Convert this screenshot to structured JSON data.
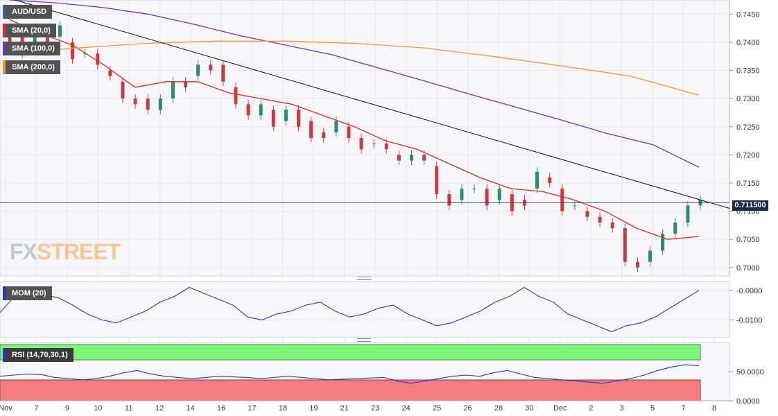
{
  "symbol": "AUD/USD",
  "indicators": {
    "sma20": {
      "label": "SMA (20,0)",
      "color": "#e8222a"
    },
    "sma100": {
      "label": "SMA (100,0)",
      "color": "#6a2ee6"
    },
    "sma200": {
      "label": "SMA (200,0)",
      "color": "#f39a1e"
    },
    "mom": {
      "label": "MOM (20)",
      "color": "#2236d8"
    },
    "rsi": {
      "label": "RSI (14,70,30,1)",
      "color": "#2236d8"
    }
  },
  "current_price": "0.711500",
  "logo": {
    "fx": "FX",
    "street": "STREET"
  },
  "chart_data": [
    {
      "type": "candlestick",
      "title": "AUD/USD",
      "ylim": [
        0.6985,
        0.7475
      ],
      "yticks": [
        "0.7000",
        "0.7050",
        "0.7100",
        "0.7150",
        "0.7200",
        "0.7250",
        "0.7300",
        "0.7350",
        "0.7400",
        "0.7450"
      ],
      "xticks": [
        "Nov",
        "7",
        "9",
        "10",
        "11",
        "12",
        "14",
        "16",
        "17",
        "18",
        "19",
        "21",
        "23",
        "24",
        "25",
        "26",
        "28",
        "30",
        "Dec",
        "2",
        "3",
        "5",
        "7",
        "8"
      ],
      "grid": true,
      "current_price": 0.7115,
      "trendline": {
        "from": 0.748,
        "to": 0.7105
      },
      "series": [
        {
          "name": "SMA (20,0)",
          "color": "#e8222a",
          "values": [
            0.744,
            0.7415,
            0.7395,
            0.736,
            0.732,
            0.733,
            0.733,
            0.731,
            0.73,
            0.729,
            0.727,
            0.725,
            0.7225,
            0.721,
            0.7185,
            0.716,
            0.714,
            0.7135,
            0.712,
            0.71,
            0.707,
            0.705,
            0.7055
          ]
        },
        {
          "name": "SMA (100,0)",
          "color": "#6a2ee6",
          "values": [
            0.7475,
            0.747,
            0.7462,
            0.745,
            0.7432,
            0.7412,
            0.7395,
            0.7378,
            0.7355,
            0.7332,
            0.7308,
            0.7285,
            0.7262,
            0.7238,
            0.7218,
            0.7178
          ]
        },
        {
          "name": "SMA (200,0)",
          "color": "#f39a1e",
          "values": [
            0.738,
            0.739,
            0.7398,
            0.7402,
            0.7402,
            0.7398,
            0.739,
            0.7375,
            0.7358,
            0.734,
            0.7306
          ]
        }
      ],
      "candles": [
        [
          0.742,
          0.74
        ],
        [
          0.742,
          0.738
        ],
        [
          0.74,
          0.741
        ],
        [
          0.742,
          0.74
        ],
        [
          0.741,
          0.743
        ],
        [
          0.74,
          0.737
        ],
        [
          0.738,
          0.738
        ],
        [
          0.738,
          0.736
        ],
        [
          0.735,
          0.734
        ],
        [
          0.733,
          0.73
        ],
        [
          0.73,
          0.729
        ],
        [
          0.73,
          0.728
        ],
        [
          0.728,
          0.73
        ],
        [
          0.73,
          0.733
        ],
        [
          0.733,
          0.732
        ],
        [
          0.734,
          0.736
        ],
        [
          0.736,
          0.735
        ],
        [
          0.736,
          0.733
        ],
        [
          0.732,
          0.729
        ],
        [
          0.729,
          0.727
        ],
        [
          0.727,
          0.729
        ],
        [
          0.728,
          0.725
        ],
        [
          0.726,
          0.728
        ],
        [
          0.728,
          0.725
        ],
        [
          0.726,
          0.723
        ],
        [
          0.724,
          0.723
        ],
        [
          0.724,
          0.726
        ],
        [
          0.725,
          0.723
        ],
        [
          0.723,
          0.721
        ],
        [
          0.722,
          0.722
        ],
        [
          0.722,
          0.721
        ],
        [
          0.72,
          0.719
        ],
        [
          0.719,
          0.72
        ],
        [
          0.72,
          0.719
        ],
        [
          0.718,
          0.713
        ],
        [
          0.713,
          0.711
        ],
        [
          0.712,
          0.714
        ],
        [
          0.714,
          0.714
        ],
        [
          0.714,
          0.711
        ],
        [
          0.712,
          0.714
        ],
        [
          0.713,
          0.71
        ],
        [
          0.712,
          0.711
        ],
        [
          0.714,
          0.717
        ],
        [
          0.716,
          0.715
        ],
        [
          0.714,
          0.71
        ],
        [
          0.711,
          0.711
        ],
        [
          0.71,
          0.709
        ],
        [
          0.709,
          0.708
        ],
        [
          0.708,
          0.707
        ],
        [
          0.707,
          0.701
        ],
        [
          0.701,
          0.7
        ],
        [
          0.701,
          0.703
        ],
        [
          0.703,
          0.706
        ],
        [
          0.706,
          0.708
        ],
        [
          0.708,
          0.711
        ],
        [
          0.711,
          0.712
        ]
      ]
    },
    {
      "type": "line",
      "title": "MOM (20)",
      "yticks": [
        "-0.0000",
        "-0.0100"
      ],
      "ylim": [
        -0.016,
        0.003
      ],
      "series": [
        {
          "name": "MOM (20)",
          "color": "#2236d8",
          "values": [
            -0.0075,
            -0.002,
            0.0,
            -0.0015,
            -0.0025,
            -0.005,
            -0.008,
            -0.01,
            -0.011,
            -0.009,
            -0.007,
            -0.004,
            -0.002,
            0.001,
            -0.001,
            -0.003,
            -0.005,
            -0.009,
            -0.01,
            -0.008,
            -0.007,
            -0.005,
            -0.004,
            -0.007,
            -0.009,
            -0.008,
            -0.006,
            -0.005,
            -0.008,
            -0.01,
            -0.012,
            -0.011,
            -0.009,
            -0.007,
            -0.004,
            -0.002,
            0.001,
            -0.002,
            -0.004,
            -0.008,
            -0.01,
            -0.012,
            -0.014,
            -0.012,
            -0.011,
            -0.009,
            -0.006,
            -0.003,
            0.0
          ]
        }
      ]
    },
    {
      "type": "line",
      "title": "RSI (14,70,30,1)",
      "yticks": [
        "50.0000",
        "0.0000"
      ],
      "ylim": [
        0,
        100
      ],
      "bands": {
        "overbought": 70,
        "oversold": 30
      },
      "series": [
        {
          "name": "RSI (14,70,30,1)",
          "color": "#2236d8",
          "values": [
            42,
            44,
            46,
            45,
            40,
            38,
            36,
            38,
            42,
            48,
            52,
            46,
            42,
            40,
            38,
            40,
            42,
            41,
            40,
            38,
            40,
            42,
            40,
            38,
            36,
            37,
            38,
            39,
            40,
            34,
            30,
            34,
            38,
            42,
            44,
            42,
            48,
            52,
            46,
            40,
            38,
            36,
            34,
            32,
            30,
            34,
            38,
            44,
            52,
            58,
            62,
            60
          ]
        }
      ]
    }
  ]
}
